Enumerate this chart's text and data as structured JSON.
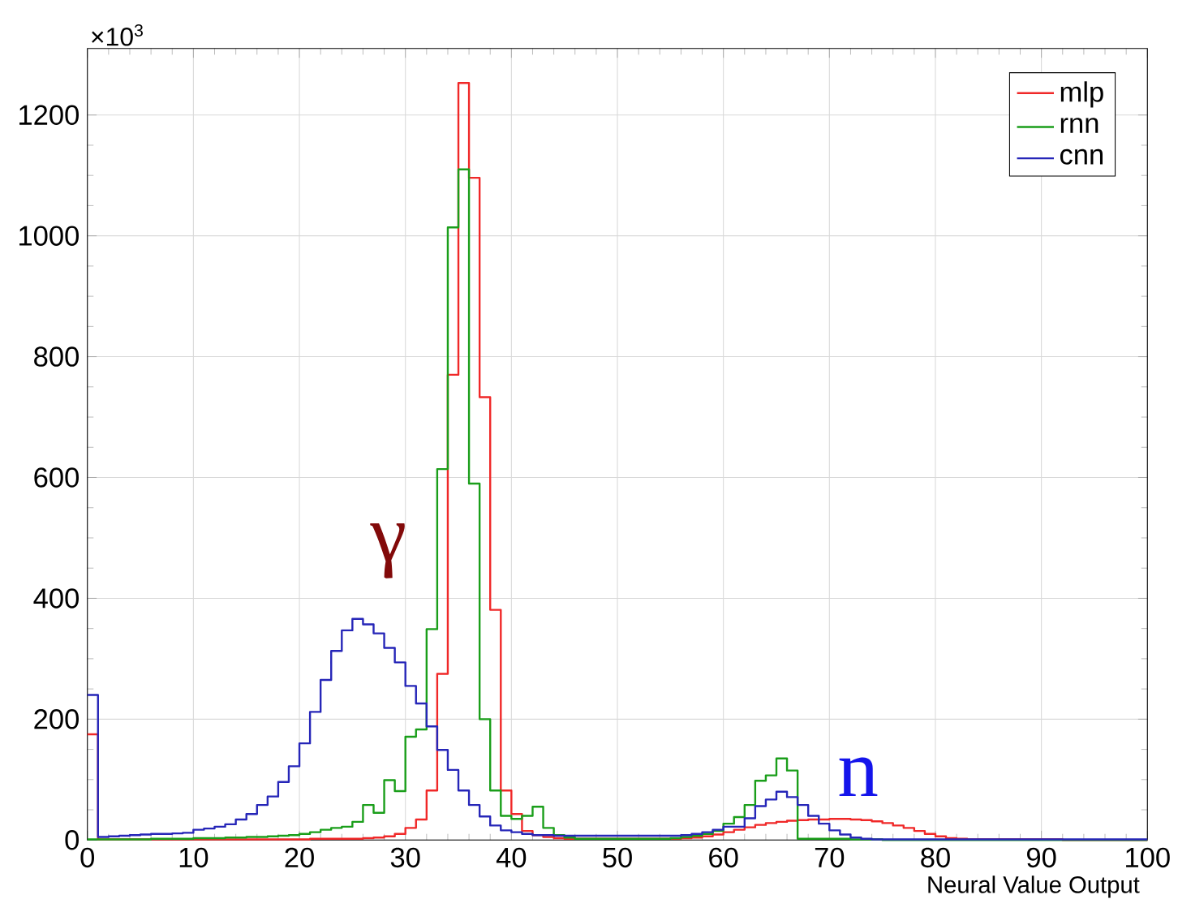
{
  "chart_data": {
    "type": "histogram",
    "xlabel": "Neural Value Output",
    "bins": [
      0,
      1,
      2,
      3,
      4,
      5,
      6,
      7,
      8,
      9,
      10,
      11,
      12,
      13,
      14,
      15,
      16,
      17,
      18,
      19,
      20,
      21,
      22,
      23,
      24,
      25,
      26,
      27,
      28,
      29,
      30,
      31,
      32,
      33,
      34,
      35,
      36,
      37,
      38,
      39,
      40,
      41,
      42,
      43,
      44,
      45,
      46,
      47,
      48,
      49,
      50,
      51,
      52,
      53,
      54,
      55,
      56,
      57,
      58,
      59,
      60,
      61,
      62,
      63,
      64,
      65,
      66,
      67,
      68,
      69,
      70,
      71,
      72,
      73,
      74,
      75,
      76,
      77,
      78,
      79,
      80,
      81,
      82,
      83,
      84,
      85,
      86,
      87,
      88,
      89,
      90,
      91,
      92,
      93,
      94,
      95,
      96,
      97,
      98,
      99,
      100
    ],
    "series": [
      {
        "name": "mlp",
        "color": "#f02828",
        "values": [
          175,
          1,
          1,
          1,
          1,
          1,
          1,
          1,
          1,
          1,
          1,
          1,
          1,
          1,
          1,
          1,
          1,
          1,
          1,
          1,
          1,
          2,
          2,
          2,
          2,
          2,
          3,
          4,
          6,
          10,
          20,
          34,
          82,
          275,
          770,
          1253,
          1096,
          733,
          381,
          82,
          43,
          15,
          8,
          5,
          3,
          2,
          2,
          2,
          2,
          2,
          2,
          2,
          2,
          2,
          2,
          2,
          3,
          4,
          6,
          9,
          13,
          17,
          21,
          25,
          28,
          30,
          32,
          33,
          34,
          34,
          35,
          35,
          34,
          33,
          31,
          28,
          24,
          20,
          15,
          10,
          6,
          3,
          2,
          1,
          1,
          1,
          1,
          1,
          1,
          1,
          1,
          1,
          0,
          0,
          0,
          0,
          0,
          0,
          0,
          0
        ]
      },
      {
        "name": "rnn",
        "color": "#1a9e1a",
        "values": [
          1,
          1,
          1,
          1,
          1,
          1,
          2,
          2,
          2,
          2,
          3,
          3,
          3,
          4,
          4,
          5,
          5,
          6,
          7,
          8,
          10,
          13,
          17,
          20,
          22,
          30,
          58,
          45,
          99,
          81,
          171,
          183,
          349,
          614,
          1014,
          1110,
          590,
          200,
          82,
          40,
          35,
          40,
          55,
          20,
          8,
          4,
          2,
          2,
          2,
          2,
          2,
          2,
          2,
          2,
          2,
          3,
          5,
          7,
          10,
          15,
          27,
          38,
          58,
          98,
          107,
          135,
          115,
          2,
          2,
          2,
          2,
          2,
          1,
          1,
          1,
          0,
          0,
          0,
          0,
          0,
          0,
          0,
          0,
          0,
          0,
          0,
          0,
          0,
          0,
          0,
          0,
          0,
          0,
          0,
          0,
          0,
          0,
          0,
          0,
          0
        ]
      },
      {
        "name": "cnn",
        "color": "#2626b8",
        "values": [
          240,
          5,
          6,
          7,
          8,
          9,
          10,
          10,
          11,
          12,
          17,
          19,
          22,
          26,
          34,
          43,
          58,
          72,
          96,
          122,
          160,
          212,
          265,
          313,
          347,
          366,
          357,
          342,
          318,
          294,
          255,
          226,
          188,
          149,
          116,
          82,
          58,
          39,
          24,
          16,
          13,
          10,
          8,
          8,
          7,
          7,
          7,
          7,
          7,
          7,
          7,
          7,
          7,
          7,
          7,
          7,
          8,
          10,
          13,
          17,
          22,
          22,
          36,
          56,
          67,
          80,
          71,
          58,
          40,
          27,
          16,
          9,
          4,
          2,
          1,
          1,
          1,
          1,
          1,
          1,
          1,
          1,
          1,
          1,
          1,
          1,
          1,
          1,
          1,
          1,
          1,
          1,
          1,
          1,
          1,
          1,
          1,
          1,
          1,
          1
        ]
      }
    ],
    "xlim": [
      0,
      100
    ],
    "ylim": [
      0,
      1310
    ],
    "xticks": [
      0,
      10,
      20,
      30,
      40,
      50,
      60,
      70,
      80,
      90,
      100
    ],
    "yticks": [
      0,
      200,
      400,
      600,
      800,
      1000,
      1200
    ],
    "grid": true,
    "legend": "top right",
    "annotations": [
      "×10$^{3}$",
      "γ",
      "n"
    ]
  }
}
